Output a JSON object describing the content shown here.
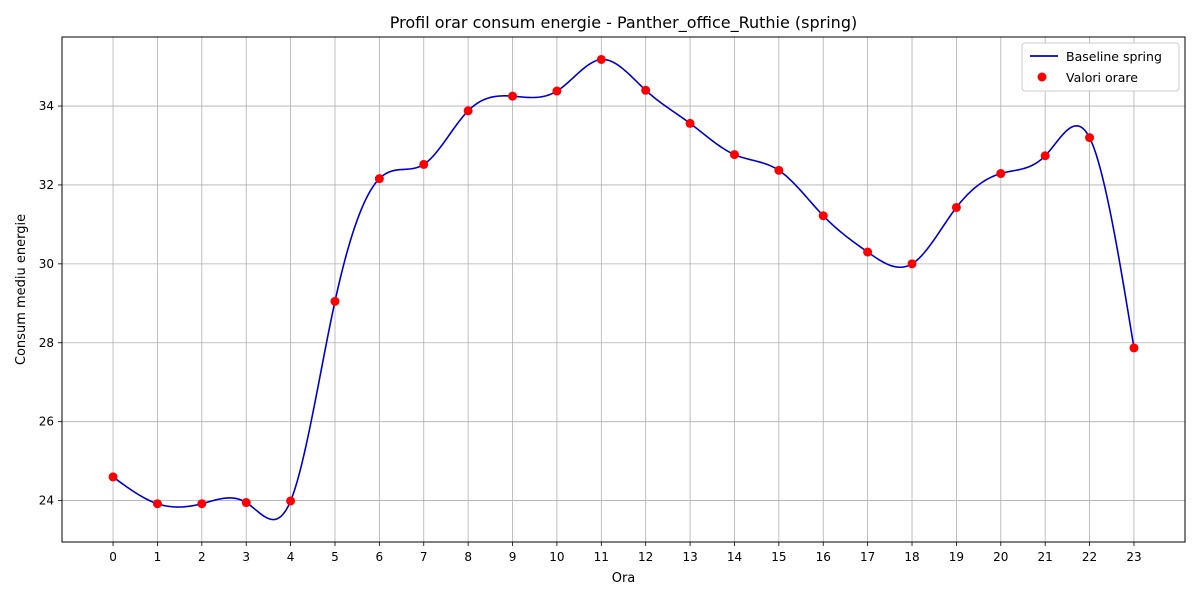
{
  "chart_data": {
    "type": "line",
    "title": "Profil orar consum energie - Panther_office_Ruthie (spring)",
    "xlabel": "Ora",
    "ylabel": "Consum mediu energie",
    "x": [
      0,
      1,
      2,
      3,
      4,
      5,
      6,
      7,
      8,
      9,
      10,
      11,
      12,
      13,
      14,
      15,
      16,
      17,
      18,
      19,
      20,
      21,
      22,
      23
    ],
    "xlim": [
      -1.15,
      24.15
    ],
    "ylim": [
      22.95,
      35.75
    ],
    "yticks": [
      24,
      26,
      28,
      30,
      32,
      34
    ],
    "grid": true,
    "legend_position": "top-right",
    "series": [
      {
        "name": "Baseline spring",
        "kind": "smooth-line",
        "color": "#0000cc",
        "values": [
          24.6,
          23.92,
          23.92,
          23.95,
          23.99,
          29.05,
          32.16,
          32.52,
          33.88,
          34.25,
          34.38,
          35.18,
          34.4,
          33.56,
          32.77,
          32.37,
          31.22,
          30.3,
          30.0,
          31.43,
          32.29,
          32.74,
          33.2,
          27.87
        ]
      },
      {
        "name": "Valori orare",
        "kind": "scatter",
        "color": "#ff0000",
        "values": [
          24.6,
          23.92,
          23.92,
          23.95,
          23.99,
          29.05,
          32.16,
          32.52,
          33.88,
          34.25,
          34.38,
          35.18,
          34.4,
          33.56,
          32.77,
          32.37,
          31.22,
          30.3,
          30.0,
          31.43,
          32.29,
          32.74,
          33.2,
          27.87
        ]
      }
    ]
  }
}
